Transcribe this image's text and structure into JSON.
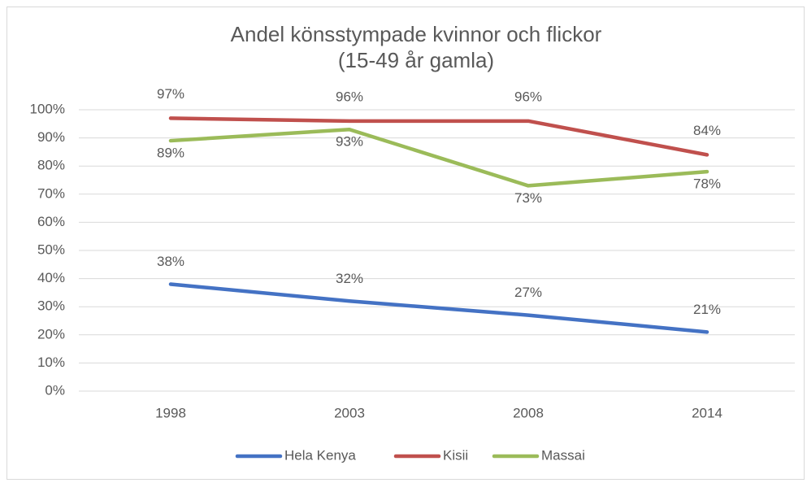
{
  "chart_data": {
    "type": "line",
    "title": "Andel könsstympade kvinnor och flickor",
    "subtitle": "(15-49 år gamla)",
    "categories": [
      "1998",
      "2003",
      "2008",
      "2014"
    ],
    "series": [
      {
        "name": "Hela Kenya",
        "color": "#4472c4",
        "values": [
          38,
          32,
          27,
          21
        ],
        "value_labels": [
          "38%",
          "32%",
          "27%",
          "21%"
        ]
      },
      {
        "name": "Kisii",
        "color": "#c0504d",
        "values": [
          97,
          96,
          96,
          84
        ],
        "value_labels": [
          "97%",
          "96%",
          "96%",
          "84%"
        ]
      },
      {
        "name": "Massai",
        "color": "#9bbb59",
        "values": [
          89,
          93,
          73,
          78
        ],
        "value_labels": [
          "89%",
          "93%",
          "73%",
          "78%"
        ]
      }
    ],
    "ylim": [
      0,
      100
    ],
    "yticks": [
      {
        "value": 0,
        "label": "0%"
      },
      {
        "value": 10,
        "label": "10%"
      },
      {
        "value": 20,
        "label": "20%"
      },
      {
        "value": 30,
        "label": "30%"
      },
      {
        "value": 40,
        "label": "40%"
      },
      {
        "value": 50,
        "label": "50%"
      },
      {
        "value": 60,
        "label": "60%"
      },
      {
        "value": 70,
        "label": "70%"
      },
      {
        "value": 80,
        "label": "80%"
      },
      {
        "value": 90,
        "label": "90%"
      },
      {
        "value": 100,
        "label": "100%"
      }
    ],
    "grid": true,
    "legend": "bottom"
  }
}
